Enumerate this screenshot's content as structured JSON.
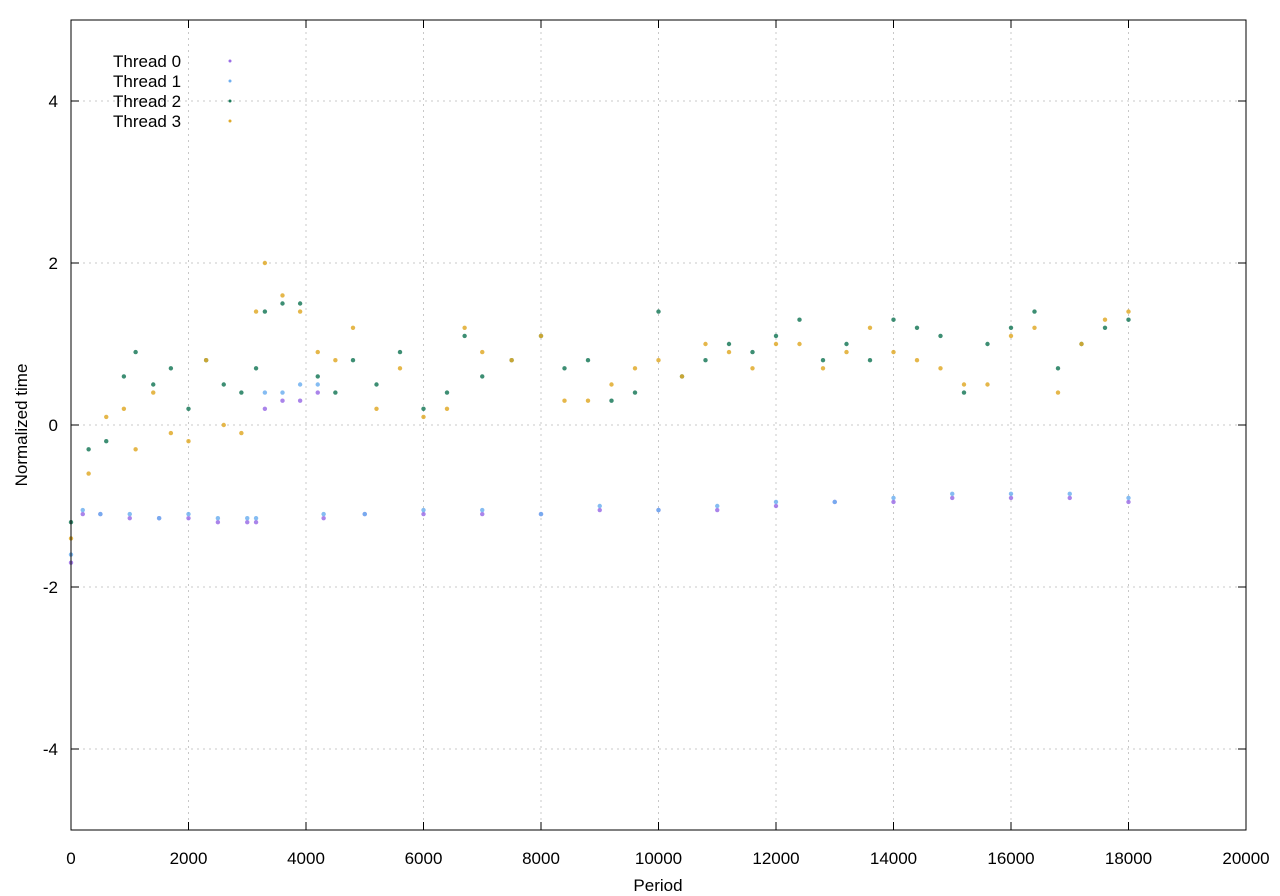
{
  "chart_data": {
    "type": "scatter",
    "title": "",
    "xlabel": "Period",
    "ylabel": "Normalized time",
    "xlim": [
      0,
      20000
    ],
    "ylim": [
      -5,
      5
    ],
    "xticks": [
      0,
      2000,
      4000,
      6000,
      8000,
      10000,
      12000,
      14000,
      16000,
      18000,
      20000
    ],
    "yticks": [
      -4,
      -2,
      0,
      2,
      4
    ],
    "xtick_labels": [
      "0",
      "2000",
      "4000",
      "6000",
      "8000",
      "10000",
      "12000",
      "14000",
      "16000",
      "18000",
      "20000"
    ],
    "ytick_labels": [
      "-4",
      "-2",
      "0",
      "2",
      "4"
    ],
    "grid": true,
    "legend_position": "top-left",
    "series": [
      {
        "name": "Thread 0",
        "color": "#9b6ee6",
        "marker": "dot",
        "x": [
          0,
          200,
          500,
          1000,
          1500,
          2000,
          2500,
          3000,
          3150,
          3300,
          3600,
          3900,
          4200,
          4300,
          5000,
          6000,
          7000,
          8000,
          9000,
          10000,
          11000,
          12000,
          13000,
          14000,
          15000,
          16000,
          17000,
          18000
        ],
        "y": [
          -1.7,
          -1.1,
          -1.1,
          -1.15,
          -1.15,
          -1.15,
          -1.2,
          -1.2,
          -1.2,
          0.2,
          0.3,
          0.3,
          0.4,
          -1.15,
          -1.1,
          -1.1,
          -1.1,
          -1.1,
          -1.05,
          -1.05,
          -1.05,
          -1.0,
          -0.95,
          -0.95,
          -0.9,
          -0.9,
          -0.9,
          -0.95
        ]
      },
      {
        "name": "Thread 1",
        "color": "#70b0f0",
        "marker": "dot",
        "x": [
          0,
          200,
          500,
          1000,
          1500,
          2000,
          2500,
          3000,
          3150,
          3300,
          3600,
          3900,
          4200,
          4300,
          5000,
          6000,
          7000,
          8000,
          9000,
          10000,
          11000,
          12000,
          13000,
          14000,
          15000,
          16000,
          17000,
          18000
        ],
        "y": [
          -1.6,
          -1.05,
          -1.1,
          -1.1,
          -1.15,
          -1.1,
          -1.15,
          -1.15,
          -1.15,
          0.4,
          0.4,
          0.5,
          0.5,
          -1.1,
          -1.1,
          -1.05,
          -1.05,
          -1.1,
          -1.0,
          -1.05,
          -1.0,
          -0.95,
          -0.95,
          -0.9,
          -0.85,
          -0.85,
          -0.85,
          -0.9
        ]
      },
      {
        "name": "Thread 2",
        "color": "#1b7a5a",
        "marker": "dot",
        "x": [
          0,
          300,
          600,
          900,
          1100,
          1400,
          1700,
          2000,
          2300,
          2600,
          2900,
          3150,
          3300,
          3600,
          3900,
          4200,
          4500,
          4800,
          5200,
          5600,
          6000,
          6400,
          6700,
          7000,
          7500,
          8000,
          8400,
          8800,
          9200,
          9600,
          10000,
          10400,
          10800,
          11200,
          11600,
          12000,
          12400,
          12800,
          13200,
          13600,
          14000,
          14400,
          14800,
          15200,
          15600,
          16000,
          16400,
          16800,
          17200,
          17600,
          18000
        ],
        "y": [
          -1.2,
          -0.3,
          -0.2,
          0.6,
          0.9,
          0.5,
          0.7,
          0.2,
          0.8,
          0.5,
          0.4,
          0.7,
          1.4,
          1.5,
          1.5,
          0.6,
          0.4,
          0.8,
          0.5,
          0.9,
          0.2,
          0.4,
          1.1,
          0.6,
          0.8,
          1.1,
          0.7,
          0.8,
          0.3,
          0.4,
          1.4,
          0.6,
          0.8,
          1.0,
          0.9,
          1.1,
          1.3,
          0.8,
          1.0,
          0.8,
          1.3,
          1.2,
          1.1,
          0.4,
          1.0,
          1.2,
          1.4,
          0.7,
          1.0,
          1.2,
          1.3
        ]
      },
      {
        "name": "Thread 3",
        "color": "#e0aa2a",
        "marker": "dot",
        "x": [
          0,
          300,
          600,
          900,
          1100,
          1400,
          1700,
          2000,
          2300,
          2600,
          2900,
          3150,
          3300,
          3600,
          3900,
          4200,
          4500,
          4800,
          5200,
          5600,
          6000,
          6400,
          6700,
          7000,
          7500,
          8000,
          8400,
          8800,
          9200,
          9600,
          10000,
          10400,
          10800,
          11200,
          11600,
          12000,
          12400,
          12800,
          13200,
          13600,
          14000,
          14400,
          14800,
          15200,
          15600,
          16000,
          16400,
          16800,
          17200,
          17600,
          18000
        ],
        "y": [
          -1.4,
          -0.6,
          0.1,
          0.2,
          -0.3,
          0.4,
          -0.1,
          -0.2,
          0.8,
          0.0,
          -0.1,
          1.4,
          2.0,
          1.6,
          1.4,
          0.9,
          0.8,
          1.2,
          0.2,
          0.7,
          0.1,
          0.2,
          1.2,
          0.9,
          0.8,
          1.1,
          0.3,
          0.3,
          0.5,
          0.7,
          0.8,
          0.6,
          1.0,
          0.9,
          0.7,
          1.0,
          1.0,
          0.7,
          0.9,
          1.2,
          0.9,
          0.8,
          0.7,
          0.5,
          0.5,
          1.1,
          1.2,
          0.4,
          1.0,
          1.3,
          1.4
        ]
      }
    ]
  }
}
